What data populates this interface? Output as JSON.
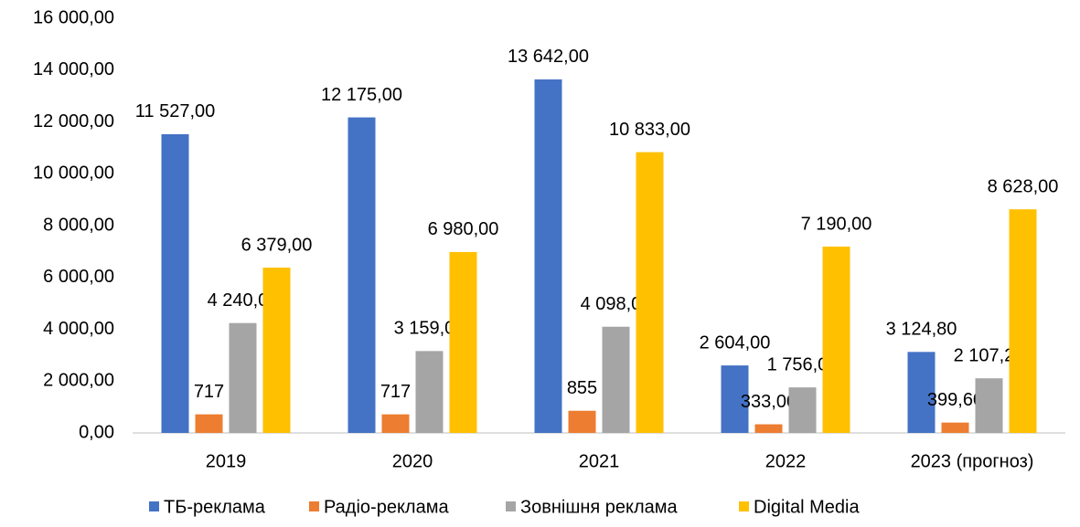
{
  "chart_data": {
    "type": "bar",
    "categories": [
      "2019",
      "2020",
      "2021",
      "2022",
      "2023 (прогноз)"
    ],
    "series": [
      {
        "name": "ТБ-реклама",
        "color": "#4472c4",
        "values": [
          11527,
          12175,
          13642,
          2604,
          3124.8
        ],
        "value_labels": [
          "11 527,00",
          "12 175,00",
          "13 642,00",
          "2 604,00",
          "3 124,80"
        ]
      },
      {
        "name": "Радіо-реклама",
        "color": "#ed7d31",
        "values": [
          717,
          717,
          855,
          333,
          399.6
        ],
        "value_labels": [
          "717",
          "717",
          "855",
          "333,00",
          "399,60"
        ]
      },
      {
        "name": "Зовнішня реклама",
        "color": "#a5a5a5",
        "values": [
          4240,
          3159,
          4098,
          1756,
          2107.2
        ],
        "value_labels": [
          "4 240,00",
          "3 159,00",
          "4 098,00",
          "1 756,00",
          "2 107,20"
        ]
      },
      {
        "name": "Digital Media",
        "color": "#ffc000",
        "values": [
          6379,
          6980,
          10833,
          7190,
          8628
        ],
        "value_labels": [
          "6 379,00",
          "6 980,00",
          "10 833,00",
          "7 190,00",
          "8 628,00"
        ]
      }
    ],
    "ylim": [
      0,
      16000
    ],
    "yticks": [
      {
        "value": 0,
        "label": "0,00"
      },
      {
        "value": 2000,
        "label": "2 000,00"
      },
      {
        "value": 4000,
        "label": "4 000,00"
      },
      {
        "value": 6000,
        "label": "6 000,00"
      },
      {
        "value": 8000,
        "label": "8 000,00"
      },
      {
        "value": 10000,
        "label": "10 000,00"
      },
      {
        "value": 12000,
        "label": "12 000,00"
      },
      {
        "value": 14000,
        "label": "14 000,00"
      },
      {
        "value": 16000,
        "label": "16 000,00"
      }
    ],
    "grid": false,
    "legend": "bottom"
  }
}
